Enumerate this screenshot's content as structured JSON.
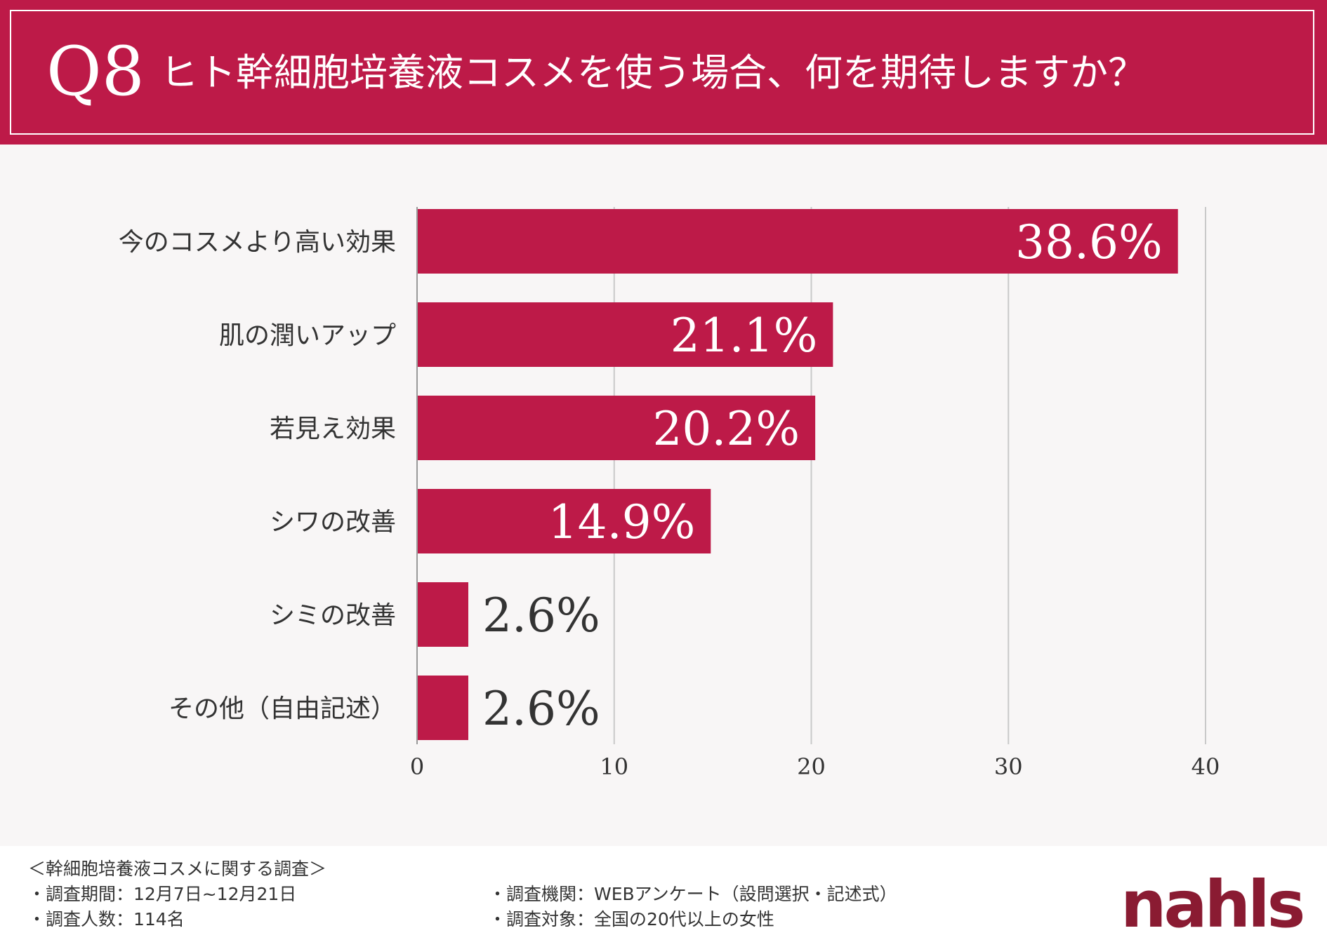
{
  "header": {
    "q_label": "Q8",
    "title": "ヒト幹細胞培養液コスメを使う場合、何を期待しますか？"
  },
  "colors": {
    "accent": "#bd1a48",
    "logo": "#8a1b32",
    "chart_background": "#f8f6f6"
  },
  "chart_data": {
    "type": "bar",
    "orientation": "horizontal",
    "categories": [
      "今のコスメより高い効果",
      "肌の潤いアップ",
      "若見え効果",
      "シワの改善",
      "シミの改善",
      "その他（自由記述）"
    ],
    "values": [
      38.6,
      21.1,
      20.2,
      14.9,
      2.6,
      2.6
    ],
    "value_labels": [
      "38.6%",
      "21.1%",
      "20.2%",
      "14.9%",
      "2.6%",
      "2.6%"
    ],
    "xlim": [
      0,
      40
    ],
    "x_ticks": [
      0,
      10,
      20,
      30,
      40
    ],
    "grid": true,
    "xlabel": "",
    "ylabel": ""
  },
  "footer": {
    "survey_title": "＜幹細胞培養液コスメに関する調査＞",
    "period": "・調査期間：12月7日~12月21日",
    "respondents": "・調査人数：114名",
    "method": "・調査機関：WEBアンケート（設問選択・記述式）",
    "target": "・調査対象：全国の20代以上の女性",
    "logo": "nahls"
  }
}
